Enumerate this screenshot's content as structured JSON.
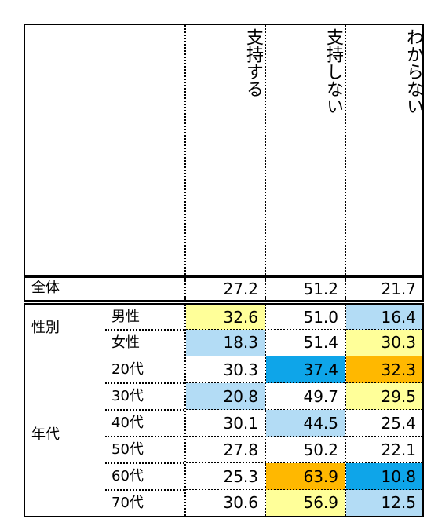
{
  "headers": [
    "支持する",
    "支持しない",
    "わからない"
  ],
  "total": {
    "label": "全体",
    "values": [
      "27.2",
      "51.2",
      "21.7"
    ]
  },
  "groups": [
    {
      "label": "性別",
      "rows": [
        {
          "label": "男性",
          "values": [
            "32.6",
            "51.0",
            "16.4"
          ],
          "colors": [
            "#ffff99",
            "#ffffff",
            "#b3dcf5"
          ]
        },
        {
          "label": "女性",
          "values": [
            "18.3",
            "51.4",
            "30.3"
          ],
          "colors": [
            "#b3dcf5",
            "#ffffff",
            "#ffff99"
          ]
        }
      ]
    },
    {
      "label": "年代",
      "rows": [
        {
          "label": "20代",
          "values": [
            "30.3",
            "37.4",
            "32.3"
          ],
          "colors": [
            "#ffffff",
            "#0ea5e9",
            "#ffb800"
          ]
        },
        {
          "label": "30代",
          "values": [
            "20.8",
            "49.7",
            "29.5"
          ],
          "colors": [
            "#b3dcf5",
            "#ffffff",
            "#ffff99"
          ]
        },
        {
          "label": "40代",
          "values": [
            "30.1",
            "44.5",
            "25.4"
          ],
          "colors": [
            "#ffffff",
            "#b3dcf5",
            "#ffffff"
          ]
        },
        {
          "label": "50代",
          "values": [
            "27.8",
            "50.2",
            "22.1"
          ],
          "colors": [
            "#ffffff",
            "#ffffff",
            "#ffffff"
          ]
        },
        {
          "label": "60代",
          "values": [
            "25.3",
            "63.9",
            "10.8"
          ],
          "colors": [
            "#ffffff",
            "#ffb800",
            "#0ea5e9"
          ]
        },
        {
          "label": "70代",
          "values": [
            "30.6",
            "56.9",
            "12.5"
          ],
          "colors": [
            "#ffffff",
            "#ffff99",
            "#b3dcf5"
          ]
        }
      ]
    }
  ]
}
